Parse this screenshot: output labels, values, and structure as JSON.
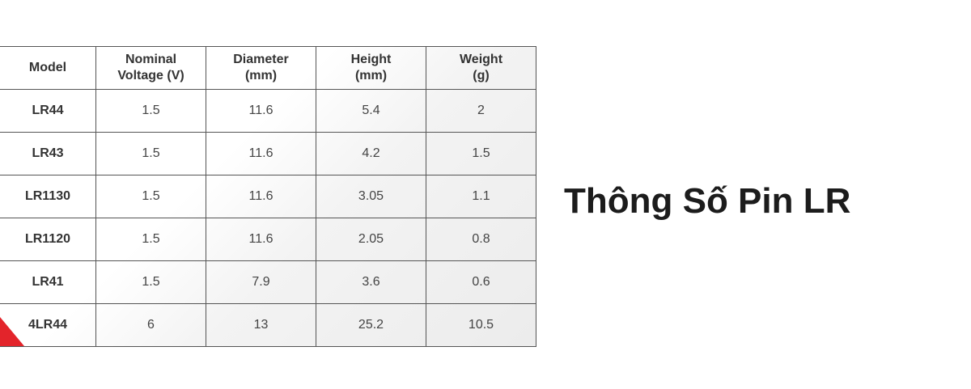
{
  "title": "Thông Số Pin LR",
  "table": {
    "headers": [
      "Model",
      "Nominal\nVoltage (V)",
      "Diameter\n(mm)",
      "Height\n(mm)",
      "Weight\n(g)"
    ],
    "rows": [
      [
        "LR44",
        "1.5",
        "11.6",
        "5.4",
        "2"
      ],
      [
        "LR43",
        "1.5",
        "11.6",
        "4.2",
        "1.5"
      ],
      [
        "LR1130",
        "1.5",
        "11.6",
        "3.05",
        "1.1"
      ],
      [
        "LR1120",
        "1.5",
        "11.6",
        "2.05",
        "0.8"
      ],
      [
        "LR41",
        "1.5",
        "7.9",
        "3.6",
        "0.6"
      ],
      [
        "4LR44",
        "6",
        "13",
        "25.2",
        "10.5"
      ]
    ]
  },
  "colors": {
    "accent": "#e3242b",
    "text": "#1c1c1c"
  }
}
